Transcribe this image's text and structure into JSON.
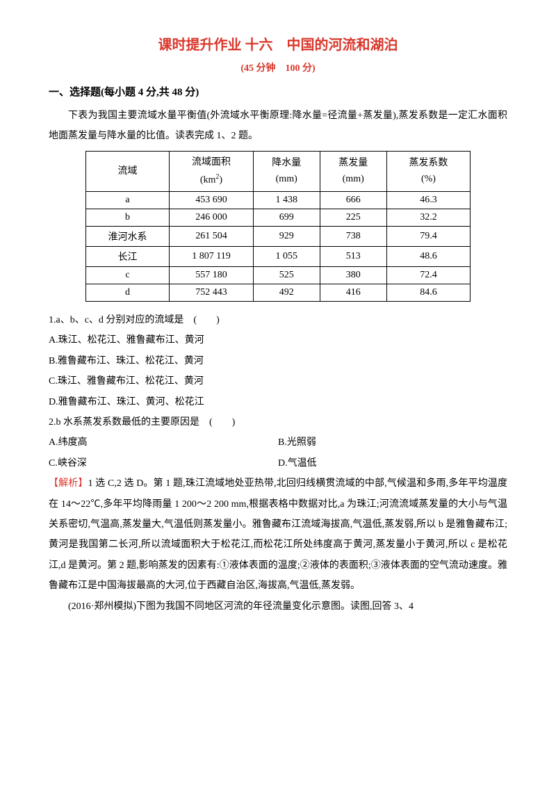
{
  "header": {
    "title": "课时提升作业 十六　中国的河流和湖泊",
    "subtitle": "(45 分钟　100 分)"
  },
  "section": {
    "heading": "一、选择题(每小题 4 分,共 48 分)",
    "intro": "下表为我国主要流域水量平衡值(外流域水平衡原理:降水量=径流量+蒸发量),蒸发系数是一定汇水面积地面蒸发量与降水量的比值。读表完成 1、2 题。"
  },
  "table": {
    "headers": {
      "col1_l1": "流域",
      "col2_l1": "流域面积",
      "col2_l2": "(km",
      "col2_l2_sup": "2",
      "col2_l2_end": ")",
      "col3_l1": "降水量",
      "col3_l2": "(mm)",
      "col4_l1": "蒸发量",
      "col4_l2": "(mm)",
      "col5_l1": "蒸发系数",
      "col5_l2": "(%)"
    },
    "rows": [
      {
        "name": "a",
        "area": "453 690",
        "precip": "1 438",
        "evap": "666",
        "coef": "46.3"
      },
      {
        "name": "b",
        "area": "246 000",
        "precip": "699",
        "evap": "225",
        "coef": "32.2"
      },
      {
        "name": "淮河水系",
        "area": "261 504",
        "precip": "929",
        "evap": "738",
        "coef": "79.4"
      },
      {
        "name": "长江",
        "area": "1 807 119",
        "precip": "1 055",
        "evap": "513",
        "coef": "48.6"
      },
      {
        "name": "c",
        "area": "557 180",
        "precip": "525",
        "evap": "380",
        "coef": "72.4"
      },
      {
        "name": "d",
        "area": "752 443",
        "precip": "492",
        "evap": "416",
        "coef": "84.6"
      }
    ]
  },
  "q1": {
    "stem": "1.a、b、c、d 分别对应的流域是　(　　)",
    "A": "A.珠江、松花江、雅鲁藏布江、黄河",
    "B": "B.雅鲁藏布江、珠江、松花江、黄河",
    "C": "C.珠江、雅鲁藏布江、松花江、黄河",
    "D": "D.雅鲁藏布江、珠江、黄河、松花江"
  },
  "q2": {
    "stem": "2.b 水系蒸发系数最低的主要原因是　(　　)",
    "A": "A.纬度高",
    "B": "B.光照弱",
    "C": "C.峡谷深",
    "D": "D.气温低"
  },
  "explain": {
    "label": "【解析】",
    "body": "1 选 C,2 选 D。第 1 题,珠江流域地处亚热带,北回归线横贯流域的中部,气候温和多雨,多年平均温度在 14～22℃,多年平均降雨量 1 200～2 200 mm,根据表格中数据对比,a 为珠江;河流流域蒸发量的大小与气温关系密切,气温高,蒸发量大,气温低则蒸发量小。雅鲁藏布江流域海拔高,气温低,蒸发弱,所以 b 是雅鲁藏布江;黄河是我国第二长河,所以流域面积大于松花江,而松花江所处纬度高于黄河,蒸发量小于黄河,所以 c 是松花江,d 是黄河。第 2 题,影响蒸发的因素有:①液体表面的温度;②液体的表面积;③液体表面的空气流动速度。雅鲁藏布江是中国海拔最高的大河,位于西藏自治区,海拔高,气温低,蒸发弱。"
  },
  "q34": {
    "intro": "(2016·郑州模拟)下图为我国不同地区河流的年径流量变化示意图。读图,回答 3、4"
  },
  "colors": {
    "red": "#d9362a",
    "text": "#000000",
    "border": "#000000",
    "background": "#ffffff"
  }
}
